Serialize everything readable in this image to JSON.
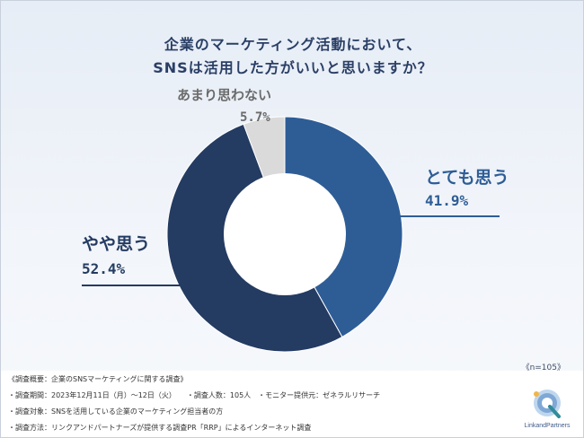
{
  "title": {
    "line1": "企業のマーケティング活動において、",
    "line2": "SNSは活用した方がいいと思いますか？"
  },
  "colors": {
    "totemo": "#2e5d96",
    "yaya": "#243b62",
    "amari": "#dadada",
    "text_dark": "#2a3f66",
    "label_amari": "#6b6b6b"
  },
  "chart_data": {
    "type": "pie",
    "donut": true,
    "slices": [
      {
        "label": "とても思う",
        "value": 41.9,
        "display": "41.9%",
        "color": "#2e5d96"
      },
      {
        "label": "やや思う",
        "value": 52.4,
        "display": "52.4%",
        "color": "#243b62"
      },
      {
        "label": "あまり思わない",
        "value": 5.7,
        "display": "5.7%",
        "color": "#dadada"
      }
    ],
    "sample_size": "《n=105》"
  },
  "notes": {
    "line1": "《調査概要：企業のSNSマーケティングに関する調査》",
    "line2": "・調査期間：2023年12月11日（月）〜12日（火）　　・調査人数：105人　・モニター提供元：ゼネラルリサーチ",
    "line3": "・調査対象：SNSを活用している企業のマーケティング担当者の方",
    "line4": "・調査方法：リンクアンドパートナーズが提供する調査PR「RRP」によるインターネット調査"
  },
  "logo": {
    "text": "LinkandPartners"
  }
}
